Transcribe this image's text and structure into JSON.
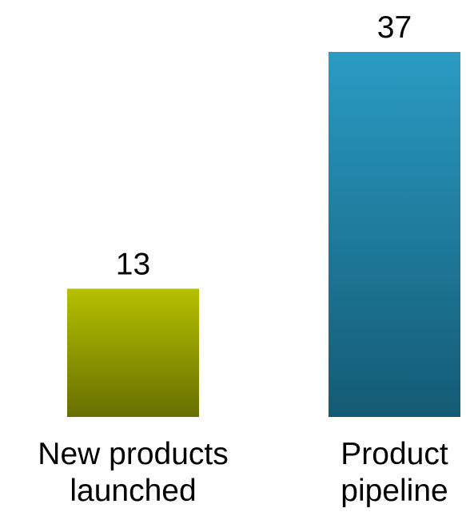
{
  "chart_data": {
    "type": "bar",
    "categories": [
      [
        "New products",
        "launched"
      ],
      [
        "Product",
        "pipeline"
      ]
    ],
    "values": [
      13,
      37
    ],
    "colors": [
      {
        "top": "#b5c100",
        "bottom": "#676f00"
      },
      {
        "top": "#2a9bc4",
        "bottom": "#145a74"
      }
    ],
    "title": "",
    "xlabel": "",
    "ylabel": "",
    "ylim": [
      0,
      37
    ],
    "grid": false,
    "legend": "none"
  }
}
